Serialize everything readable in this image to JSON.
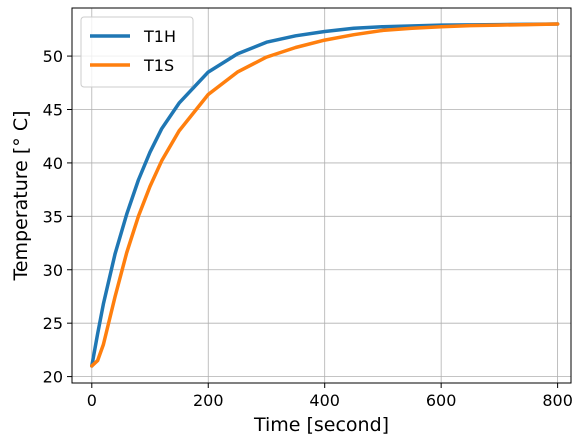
{
  "chart_data": {
    "type": "line",
    "title": "",
    "xlabel": "Time [second]",
    "ylabel": "Temperature [° C]",
    "xlim": [
      -34,
      823
    ],
    "ylim": [
      19.4,
      54.5
    ],
    "xticks": [
      0,
      200,
      400,
      600,
      800
    ],
    "yticks": [
      20,
      25,
      30,
      35,
      40,
      45,
      50
    ],
    "grid": true,
    "legend": "top-left",
    "series": [
      {
        "name": "T1H",
        "color": "#1f77b4",
        "x": [
          0,
          10,
          20,
          40,
          60,
          80,
          100,
          120,
          150,
          200,
          250,
          300,
          350,
          400,
          450,
          500,
          600,
          700,
          800
        ],
        "y": [
          21.0,
          24.0,
          26.8,
          31.5,
          35.2,
          38.4,
          41.0,
          43.2,
          45.6,
          48.5,
          50.2,
          51.3,
          51.9,
          52.3,
          52.6,
          52.75,
          52.9,
          52.95,
          53.0
        ]
      },
      {
        "name": "T1S",
        "color": "#ff7f0e",
        "x": [
          0,
          10,
          20,
          40,
          60,
          80,
          100,
          120,
          150,
          200,
          250,
          300,
          350,
          400,
          450,
          500,
          550,
          600,
          650,
          700,
          750,
          800
        ],
        "y": [
          21.0,
          21.5,
          23.0,
          27.5,
          31.6,
          35.0,
          37.8,
          40.2,
          43.0,
          46.4,
          48.5,
          49.9,
          50.8,
          51.5,
          52.0,
          52.4,
          52.6,
          52.75,
          52.85,
          52.9,
          52.95,
          53.0
        ]
      }
    ]
  }
}
